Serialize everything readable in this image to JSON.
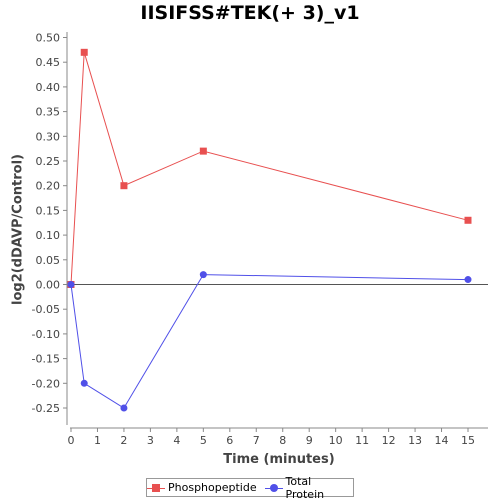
{
  "chart_data": {
    "type": "line",
    "title": "IISIFSS#TEK(+ 3)_v1",
    "xlabel": "Time (minutes)",
    "ylabel": "log2(dDAVP/Control)",
    "xlim": [
      0,
      15.5
    ],
    "ylim": [
      -0.28,
      0.5
    ],
    "xticks": [
      0,
      1,
      2,
      3,
      4,
      5,
      6,
      7,
      8,
      9,
      10,
      11,
      12,
      13,
      14,
      15
    ],
    "yticks": [
      -0.25,
      -0.2,
      -0.15,
      -0.1,
      -0.05,
      0.0,
      0.05,
      0.1,
      0.15,
      0.2,
      0.25,
      0.3,
      0.35,
      0.4,
      0.45,
      0.5
    ],
    "ytick_labels": [
      "-0.25",
      "-0.20",
      "-0.15",
      "-0.10",
      "-0.05",
      "0.00",
      "0.05",
      "0.10",
      "0.15",
      "0.20",
      "0.25",
      "0.30",
      "0.35",
      "0.40",
      "0.45",
      "0.50"
    ],
    "zero_line": true,
    "grid": false,
    "legend_position": "bottom",
    "series": [
      {
        "name": "Phosphopeptide",
        "color": "#e85050",
        "marker": "square",
        "x": [
          0,
          0.5,
          2,
          5,
          15
        ],
        "y": [
          0.0,
          0.47,
          0.2,
          0.27,
          0.13
        ]
      },
      {
        "name": "Total Protein",
        "color": "#5050e8",
        "marker": "circle",
        "x": [
          0,
          0.5,
          2,
          5,
          15
        ],
        "y": [
          0.0,
          -0.2,
          -0.25,
          0.02,
          0.01
        ]
      }
    ]
  }
}
